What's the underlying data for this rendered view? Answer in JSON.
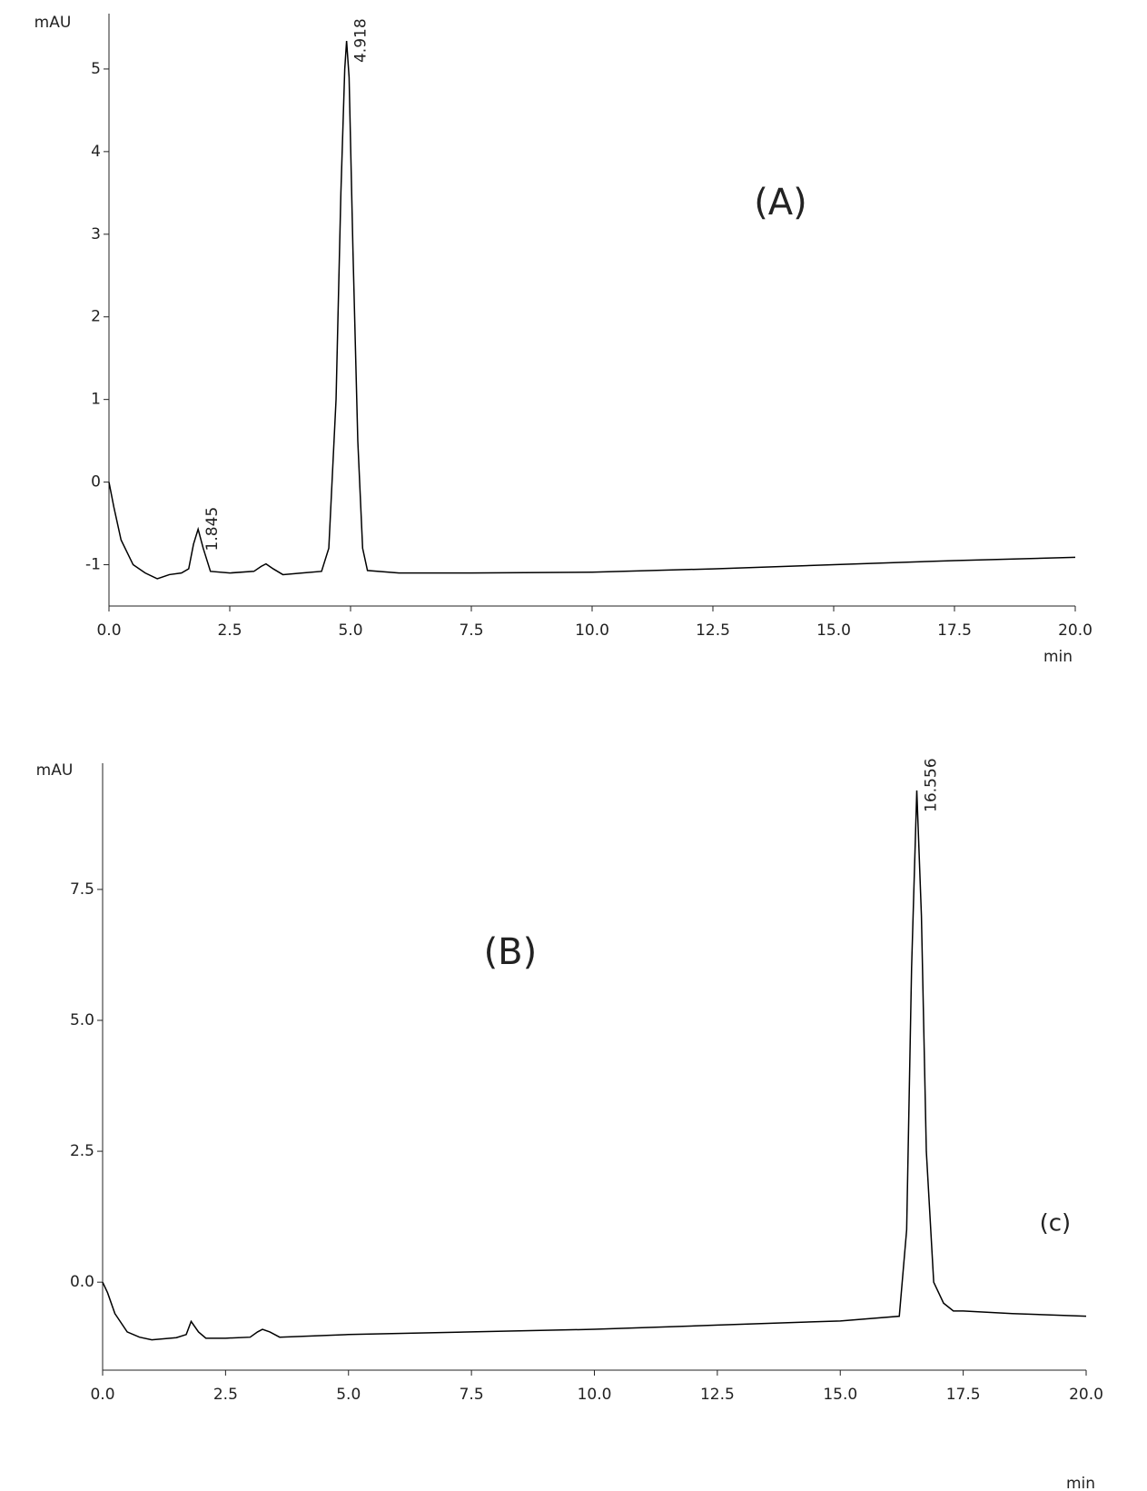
{
  "chart_data": [
    {
      "type": "line",
      "y_label": "mAU",
      "x_label": "min",
      "color": "#000000",
      "x": [
        0,
        0.1,
        0.25,
        0.5,
        0.75,
        1.0,
        1.25,
        1.5,
        1.65,
        1.75,
        1.845,
        1.95,
        2.1,
        2.5,
        3.0,
        3.15,
        3.25,
        3.4,
        3.6,
        4.0,
        4.4,
        4.55,
        4.7,
        4.8,
        4.88,
        4.918,
        4.97,
        5.05,
        5.15,
        5.25,
        5.35,
        6.0,
        7.5,
        10.0,
        12.5,
        15.0,
        17.5,
        20.0
      ],
      "values": [
        0.0,
        -0.3,
        -0.7,
        -1.0,
        -1.1,
        -1.17,
        -1.12,
        -1.1,
        -1.05,
        -0.75,
        -0.57,
        -0.8,
        -1.08,
        -1.1,
        -1.08,
        -1.02,
        -0.99,
        -1.05,
        -1.12,
        -1.1,
        -1.08,
        -0.8,
        1.0,
        3.5,
        5.0,
        5.34,
        4.9,
        2.8,
        0.5,
        -0.8,
        -1.07,
        -1.1,
        -1.1,
        -1.09,
        -1.05,
        -1.0,
        -0.95,
        -0.91
      ],
      "xlim": [
        0,
        20
      ],
      "ylim": [
        -1.5,
        5.67
      ],
      "xticks": [
        {
          "value": 0,
          "label": "0.0"
        },
        2.5,
        {
          "value": 5,
          "label": "5.0"
        },
        7.5,
        {
          "value": 10,
          "label": "10.0"
        },
        12.5,
        {
          "value": 15,
          "label": "15.0"
        },
        17.5,
        {
          "value": 20,
          "label": "20.0"
        }
      ],
      "yticks": [
        -1,
        0,
        1,
        2,
        3,
        4,
        5
      ],
      "peak_labels": [
        {
          "text": "1.845",
          "x": 1.845,
          "y": -0.57
        },
        {
          "text": "4.918",
          "x": 4.918,
          "y": 5.34
        }
      ],
      "panel_labels": [
        {
          "text": "(A)",
          "x": 13.9,
          "y": 3.36
        }
      ]
    },
    {
      "type": "line",
      "y_label": "mAU",
      "x_label": "min",
      "color": "#000000",
      "x": [
        0,
        0.1,
        0.25,
        0.5,
        0.75,
        1.0,
        1.5,
        1.7,
        1.8,
        1.95,
        2.1,
        2.5,
        3.0,
        3.15,
        3.25,
        3.4,
        3.6,
        5.0,
        7.5,
        10.0,
        12.5,
        15.0,
        16.2,
        16.35,
        16.45,
        16.556,
        16.65,
        16.75,
        16.9,
        17.1,
        17.3,
        17.5,
        18.5,
        20.0
      ],
      "values": [
        0.0,
        -0.2,
        -0.6,
        -0.95,
        -1.05,
        -1.1,
        -1.06,
        -1.0,
        -0.75,
        -0.95,
        -1.07,
        -1.07,
        -1.05,
        -0.95,
        -0.9,
        -0.95,
        -1.05,
        -1.0,
        -0.95,
        -0.9,
        -0.82,
        -0.74,
        -0.65,
        1.0,
        6.0,
        9.39,
        7.0,
        2.5,
        0.0,
        -0.4,
        -0.55,
        -0.55,
        -0.6,
        -0.65
      ],
      "xlim": [
        0,
        20
      ],
      "ylim": [
        -1.68,
        9.91
      ],
      "xticks": [
        {
          "value": 0,
          "label": "0.0"
        },
        2.5,
        {
          "value": 5,
          "label": "5.0"
        },
        7.5,
        {
          "value": 10,
          "label": "10.0"
        },
        12.5,
        {
          "value": 15,
          "label": "15.0"
        },
        17.5,
        {
          "value": 20,
          "label": "20.0"
        }
      ],
      "yticks": [
        {
          "value": 0,
          "label": "0.0"
        },
        2.5,
        {
          "value": 5,
          "label": "5.0"
        },
        7.5
      ],
      "peak_labels": [
        {
          "text": "16.556",
          "x": 16.556,
          "y": 9.39
        }
      ],
      "panel_labels": [
        {
          "text": "(B)",
          "x": 8.29,
          "y": 6.27
        },
        {
          "text": "(c)",
          "x": 19.37,
          "y": 1.11
        }
      ]
    }
  ]
}
